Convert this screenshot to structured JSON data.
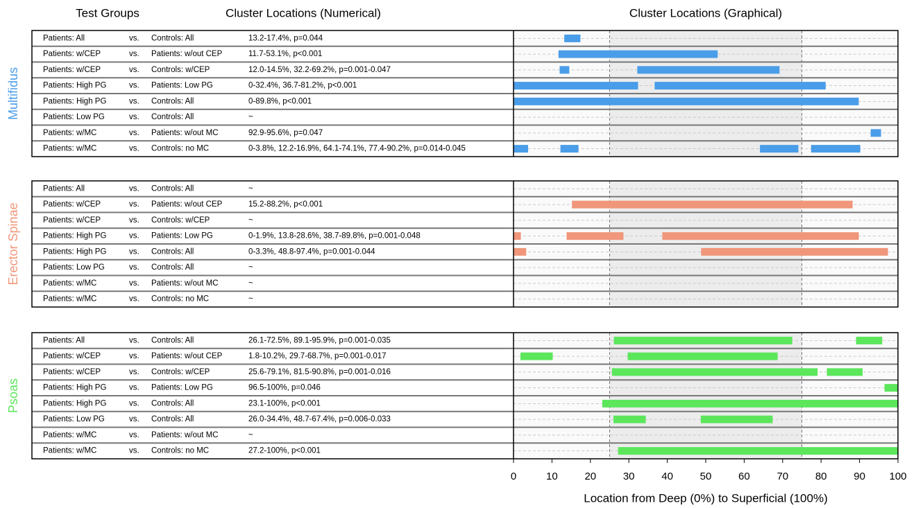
{
  "chart_data": {
    "type": "range-bar",
    "headers": [
      "Test Groups",
      "Cluster Locations (Numerical)",
      "Cluster Locations (Graphical)"
    ],
    "separator": "vs.",
    "xlabel": "Location from Deep (0%) to Superficial (100%)",
    "xlim": [
      0,
      100
    ],
    "xticks": [
      0,
      10,
      20,
      30,
      40,
      50,
      60,
      70,
      80,
      90,
      100
    ],
    "highlight_range": [
      25,
      75
    ],
    "groups": [
      {
        "name": "Multifidus",
        "color": "#4a9de8",
        "rows": [
          {
            "group1": "Patients: All",
            "group2": "Controls: All",
            "text": "13.2-17.4%, p=0.044",
            "ranges": [
              [
                13.2,
                17.4
              ]
            ]
          },
          {
            "group1": "Patients: w/CEP",
            "group2": "Patients: w/out CEP",
            "text": "11.7-53.1%, p<0.001",
            "ranges": [
              [
                11.7,
                53.1
              ]
            ]
          },
          {
            "group1": "Patients: w/CEP",
            "group2": "Controls: w/CEP",
            "text": "12.0-14.5%, 32.2-69.2%, p=0.001-0.047",
            "ranges": [
              [
                12.0,
                14.5
              ],
              [
                32.2,
                69.2
              ]
            ]
          },
          {
            "group1": "Patients: High PG",
            "group2": "Patients: Low PG",
            "text": "0-32.4%, 36.7-81.2%, p<0.001",
            "ranges": [
              [
                0,
                32.4
              ],
              [
                36.7,
                81.2
              ]
            ]
          },
          {
            "group1": "Patients: High PG",
            "group2": "Controls: All",
            "text": "0-89.8%, p<0.001",
            "ranges": [
              [
                0,
                89.8
              ]
            ]
          },
          {
            "group1": "Patients: Low PG",
            "group2": "Controls: All",
            "text": "~",
            "ranges": []
          },
          {
            "group1": "Patients: w/MC",
            "group2": "Patients: w/out MC",
            "text": "92.9-95.6%, p=0.047",
            "ranges": [
              [
                92.9,
                95.6
              ]
            ]
          },
          {
            "group1": "Patients: w/MC",
            "group2": "Controls: no MC",
            "text": "0-3.8%, 12.2-16.9%, 64.1-74.1%, 77.4-90.2%, p=0.014-0.045",
            "ranges": [
              [
                0,
                3.8
              ],
              [
                12.2,
                16.9
              ],
              [
                64.1,
                74.1
              ],
              [
                77.4,
                90.2
              ]
            ]
          }
        ]
      },
      {
        "name": "Erector Spinae",
        "color": "#f0967a",
        "rows": [
          {
            "group1": "Patients: All",
            "group2": "Controls: All",
            "text": "~",
            "ranges": []
          },
          {
            "group1": "Patients: w/CEP",
            "group2": "Patients: w/out CEP",
            "text": "15.2-88.2%, p<0.001",
            "ranges": [
              [
                15.2,
                88.2
              ]
            ]
          },
          {
            "group1": "Patients: w/CEP",
            "group2": "Controls: w/CEP",
            "text": "~",
            "ranges": []
          },
          {
            "group1": "Patients: High PG",
            "group2": "Patients: Low PG",
            "text": "0-1.9%, 13.8-28.6%, 38.7-89.8%, p=0.001-0.048",
            "ranges": [
              [
                0,
                1.9
              ],
              [
                13.8,
                28.6
              ],
              [
                38.7,
                89.8
              ]
            ]
          },
          {
            "group1": "Patients: High PG",
            "group2": "Controls: All",
            "text": "0-3.3%, 48.8-97.4%, p=0.001-0.044",
            "ranges": [
              [
                0,
                3.3
              ],
              [
                48.8,
                97.4
              ]
            ]
          },
          {
            "group1": "Patients: Low PG",
            "group2": "Controls: All",
            "text": "~",
            "ranges": []
          },
          {
            "group1": "Patients: w/MC",
            "group2": "Patients: w/out MC",
            "text": "~",
            "ranges": []
          },
          {
            "group1": "Patients: w/MC",
            "group2": "Controls: no MC",
            "text": "~",
            "ranges": []
          }
        ]
      },
      {
        "name": "Psoas",
        "color": "#5ce65c",
        "rows": [
          {
            "group1": "Patients: All",
            "group2": "Controls: All",
            "text": "26.1-72.5%, 89.1-95.9%, p=0.001-0.035",
            "ranges": [
              [
                26.1,
                72.5
              ],
              [
                89.1,
                95.9
              ]
            ]
          },
          {
            "group1": "Patients: w/CEP",
            "group2": "Patients: w/out CEP",
            "text": "1.8-10.2%, 29.7-68.7%, p=0.001-0.017",
            "ranges": [
              [
                1.8,
                10.2
              ],
              [
                29.7,
                68.7
              ]
            ]
          },
          {
            "group1": "Patients: w/CEP",
            "group2": "Controls: w/CEP",
            "text": "25.6-79.1%, 81.5-90.8%, p=0.001-0.016",
            "ranges": [
              [
                25.6,
                79.1
              ],
              [
                81.5,
                90.8
              ]
            ]
          },
          {
            "group1": "Patients: High PG",
            "group2": "Patients: Low PG",
            "text": "96.5-100%, p=0.046",
            "ranges": [
              [
                96.5,
                100
              ]
            ]
          },
          {
            "group1": "Patients: High PG",
            "group2": "Controls: All",
            "text": "23.1-100%, p<0.001",
            "ranges": [
              [
                23.1,
                100
              ]
            ]
          },
          {
            "group1": "Patients: Low PG",
            "group2": "Controls: All",
            "text": "26.0-34.4%, 48.7-67.4%, p=0.006-0.033",
            "ranges": [
              [
                26.0,
                34.4
              ],
              [
                48.7,
                67.4
              ]
            ]
          },
          {
            "group1": "Patients: w/MC",
            "group2": "Patients: w/out MC",
            "text": "~",
            "ranges": []
          },
          {
            "group1": "Patients: w/MC",
            "group2": "Controls: no MC",
            "text": "27.2-100%, p<0.001",
            "ranges": [
              [
                27.2,
                100
              ]
            ]
          }
        ]
      }
    ]
  }
}
